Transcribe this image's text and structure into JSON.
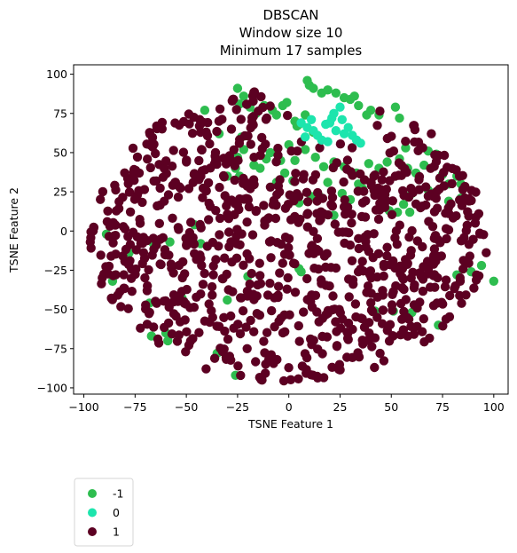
{
  "chart_data": {
    "type": "scatter",
    "title_lines": [
      "DBSCAN",
      "Window size 10",
      "Minimum 17 samples"
    ],
    "xlabel": "TSNE Feature 1",
    "ylabel": "TSNE Feature 2",
    "xlim": [
      -105,
      107
    ],
    "ylim": [
      -104,
      106
    ],
    "xticks": [
      -100,
      -75,
      -50,
      -25,
      0,
      25,
      50,
      75,
      100
    ],
    "yticks": [
      -100,
      -75,
      -50,
      -25,
      0,
      25,
      50,
      75,
      100
    ],
    "grid": false,
    "legend_position": "below-left",
    "series": [
      {
        "name": "-1",
        "color": "#2ebd4f",
        "points": [
          [
            -25,
            91
          ],
          [
            -22,
            86
          ],
          [
            -24,
            81
          ],
          [
            -19,
            79
          ],
          [
            -16,
            75
          ],
          [
            -8,
            77
          ],
          [
            -3,
            80
          ],
          [
            -1,
            82
          ],
          [
            -6,
            74
          ],
          [
            9,
            96
          ],
          [
            10,
            93
          ],
          [
            12,
            91
          ],
          [
            16,
            88
          ],
          [
            19,
            90
          ],
          [
            23,
            88
          ],
          [
            27,
            85
          ],
          [
            32,
            86
          ],
          [
            30,
            84
          ],
          [
            34,
            80
          ],
          [
            40,
            77
          ],
          [
            38,
            74
          ],
          [
            44,
            74
          ],
          [
            52,
            79
          ],
          [
            54,
            72
          ],
          [
            8,
            74
          ],
          [
            4,
            67
          ],
          [
            3,
            70
          ],
          [
            12,
            63
          ],
          [
            8,
            52
          ],
          [
            13,
            47
          ],
          [
            17,
            41
          ],
          [
            22,
            44
          ],
          [
            19,
            31
          ],
          [
            11,
            22
          ],
          [
            15,
            22
          ],
          [
            5,
            18
          ],
          [
            2,
            32
          ],
          [
            -2,
            37
          ],
          [
            -6,
            31
          ],
          [
            3,
            45
          ],
          [
            -4,
            45
          ],
          [
            -9,
            50
          ],
          [
            -11,
            46
          ],
          [
            -17,
            42
          ],
          [
            -22,
            52
          ],
          [
            -25,
            47
          ],
          [
            -26,
            40
          ],
          [
            -24,
            35
          ],
          [
            -30,
            35
          ],
          [
            -14,
            40
          ],
          [
            27,
            41
          ],
          [
            33,
            37
          ],
          [
            39,
            43
          ],
          [
            44,
            40
          ],
          [
            48,
            44
          ],
          [
            54,
            46
          ],
          [
            57,
            53
          ],
          [
            58,
            40
          ],
          [
            62,
            37
          ],
          [
            66,
            42
          ],
          [
            68,
            51
          ],
          [
            72,
            49
          ],
          [
            75,
            36
          ],
          [
            78,
            30
          ],
          [
            82,
            35
          ],
          [
            84,
            30
          ],
          [
            72,
            25
          ],
          [
            68,
            26
          ],
          [
            60,
            24
          ],
          [
            56,
            17
          ],
          [
            53,
            12
          ],
          [
            49,
            13
          ],
          [
            59,
            12
          ],
          [
            36,
            27
          ],
          [
            30,
            20
          ],
          [
            26,
            24
          ],
          [
            78,
            19
          ],
          [
            84,
            21
          ],
          [
            -46,
            4
          ],
          [
            -58,
            -7
          ],
          [
            -66,
            -8
          ],
          [
            -86,
            -32
          ],
          [
            -67,
            -67
          ],
          [
            -59,
            -70
          ],
          [
            -60,
            -65
          ],
          [
            -52,
            -43
          ],
          [
            -30,
            -44
          ],
          [
            -20,
            -29
          ],
          [
            5,
            -24
          ],
          [
            6,
            -26
          ],
          [
            -35,
            -78
          ],
          [
            -26,
            -92
          ],
          [
            42,
            -51
          ],
          [
            51,
            -51
          ],
          [
            60,
            -52
          ],
          [
            73,
            -60
          ],
          [
            82,
            -28
          ],
          [
            89,
            -26
          ],
          [
            94,
            -22
          ],
          [
            100,
            -32
          ],
          [
            -41,
            77
          ],
          [
            -12,
            80
          ],
          [
            5,
            68
          ],
          [
            0,
            55
          ],
          [
            -23,
            60
          ],
          [
            -34,
            62
          ],
          [
            -43,
            -8
          ],
          [
            22,
            10
          ],
          [
            34,
            30
          ],
          [
            -78,
            -14
          ],
          [
            -89,
            -2
          ],
          [
            -68,
            -46
          ]
        ]
      },
      {
        "name": "0",
        "color": "#1de5ad",
        "points": [
          [
            6,
            69
          ],
          [
            9,
            66
          ],
          [
            11,
            71
          ],
          [
            12,
            64
          ],
          [
            14,
            61
          ],
          [
            16,
            58
          ],
          [
            18,
            68
          ],
          [
            21,
            72
          ],
          [
            22,
            75
          ],
          [
            25,
            79
          ],
          [
            19,
            57
          ],
          [
            27,
            62
          ],
          [
            29,
            66
          ],
          [
            31,
            61
          ],
          [
            33,
            58
          ],
          [
            35,
            56
          ],
          [
            26,
            71
          ],
          [
            23,
            64
          ],
          [
            20,
            69
          ],
          [
            8,
            60
          ]
        ]
      },
      {
        "name": "1",
        "color": "#5c0022",
        "points": []
      }
    ],
    "dense_series": {
      "name": "1",
      "color": "#5c0022",
      "count": 900,
      "center": [
        0,
        -3
      ],
      "radius_x": 97,
      "radius_y": 94
    }
  },
  "legend": {
    "items": [
      {
        "label": "-1",
        "color": "#2ebd4f"
      },
      {
        "label": "0",
        "color": "#1de5ad"
      },
      {
        "label": "1",
        "color": "#5c0022"
      }
    ]
  }
}
